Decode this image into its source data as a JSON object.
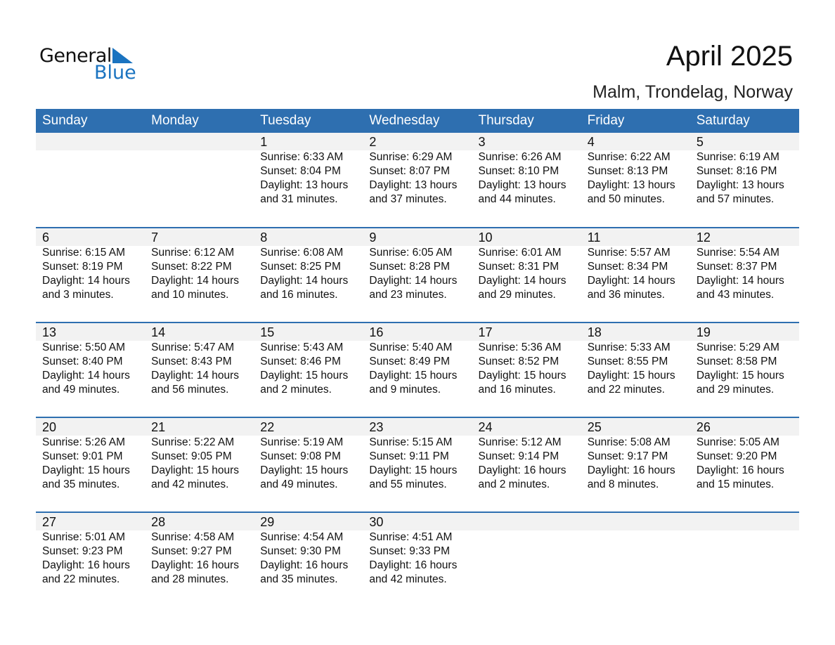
{
  "logo": {
    "text1": "General",
    "text2": "Blue"
  },
  "title": "April 2025",
  "location": "Malm, Trondelag, Norway",
  "weekdays": [
    "Sunday",
    "Monday",
    "Tuesday",
    "Wednesday",
    "Thursday",
    "Friday",
    "Saturday"
  ],
  "colors": {
    "header": "#2e6fb0",
    "band": "#f2f2f2",
    "logo_blue": "#1a73c0"
  },
  "days": [
    {
      "d": "1",
      "rise": "Sunrise: 6:33 AM",
      "set": "Sunset: 8:04 PM",
      "dl1": "Daylight: 13 hours",
      "dl2": "and 31 minutes."
    },
    {
      "d": "2",
      "rise": "Sunrise: 6:29 AM",
      "set": "Sunset: 8:07 PM",
      "dl1": "Daylight: 13 hours",
      "dl2": "and 37 minutes."
    },
    {
      "d": "3",
      "rise": "Sunrise: 6:26 AM",
      "set": "Sunset: 8:10 PM",
      "dl1": "Daylight: 13 hours",
      "dl2": "and 44 minutes."
    },
    {
      "d": "4",
      "rise": "Sunrise: 6:22 AM",
      "set": "Sunset: 8:13 PM",
      "dl1": "Daylight: 13 hours",
      "dl2": "and 50 minutes."
    },
    {
      "d": "5",
      "rise": "Sunrise: 6:19 AM",
      "set": "Sunset: 8:16 PM",
      "dl1": "Daylight: 13 hours",
      "dl2": "and 57 minutes."
    },
    {
      "d": "6",
      "rise": "Sunrise: 6:15 AM",
      "set": "Sunset: 8:19 PM",
      "dl1": "Daylight: 14 hours",
      "dl2": "and 3 minutes."
    },
    {
      "d": "7",
      "rise": "Sunrise: 6:12 AM",
      "set": "Sunset: 8:22 PM",
      "dl1": "Daylight: 14 hours",
      "dl2": "and 10 minutes."
    },
    {
      "d": "8",
      "rise": "Sunrise: 6:08 AM",
      "set": "Sunset: 8:25 PM",
      "dl1": "Daylight: 14 hours",
      "dl2": "and 16 minutes."
    },
    {
      "d": "9",
      "rise": "Sunrise: 6:05 AM",
      "set": "Sunset: 8:28 PM",
      "dl1": "Daylight: 14 hours",
      "dl2": "and 23 minutes."
    },
    {
      "d": "10",
      "rise": "Sunrise: 6:01 AM",
      "set": "Sunset: 8:31 PM",
      "dl1": "Daylight: 14 hours",
      "dl2": "and 29 minutes."
    },
    {
      "d": "11",
      "rise": "Sunrise: 5:57 AM",
      "set": "Sunset: 8:34 PM",
      "dl1": "Daylight: 14 hours",
      "dl2": "and 36 minutes."
    },
    {
      "d": "12",
      "rise": "Sunrise: 5:54 AM",
      "set": "Sunset: 8:37 PM",
      "dl1": "Daylight: 14 hours",
      "dl2": "and 43 minutes."
    },
    {
      "d": "13",
      "rise": "Sunrise: 5:50 AM",
      "set": "Sunset: 8:40 PM",
      "dl1": "Daylight: 14 hours",
      "dl2": "and 49 minutes."
    },
    {
      "d": "14",
      "rise": "Sunrise: 5:47 AM",
      "set": "Sunset: 8:43 PM",
      "dl1": "Daylight: 14 hours",
      "dl2": "and 56 minutes."
    },
    {
      "d": "15",
      "rise": "Sunrise: 5:43 AM",
      "set": "Sunset: 8:46 PM",
      "dl1": "Daylight: 15 hours",
      "dl2": "and 2 minutes."
    },
    {
      "d": "16",
      "rise": "Sunrise: 5:40 AM",
      "set": "Sunset: 8:49 PM",
      "dl1": "Daylight: 15 hours",
      "dl2": "and 9 minutes."
    },
    {
      "d": "17",
      "rise": "Sunrise: 5:36 AM",
      "set": "Sunset: 8:52 PM",
      "dl1": "Daylight: 15 hours",
      "dl2": "and 16 minutes."
    },
    {
      "d": "18",
      "rise": "Sunrise: 5:33 AM",
      "set": "Sunset: 8:55 PM",
      "dl1": "Daylight: 15 hours",
      "dl2": "and 22 minutes."
    },
    {
      "d": "19",
      "rise": "Sunrise: 5:29 AM",
      "set": "Sunset: 8:58 PM",
      "dl1": "Daylight: 15 hours",
      "dl2": "and 29 minutes."
    },
    {
      "d": "20",
      "rise": "Sunrise: 5:26 AM",
      "set": "Sunset: 9:01 PM",
      "dl1": "Daylight: 15 hours",
      "dl2": "and 35 minutes."
    },
    {
      "d": "21",
      "rise": "Sunrise: 5:22 AM",
      "set": "Sunset: 9:05 PM",
      "dl1": "Daylight: 15 hours",
      "dl2": "and 42 minutes."
    },
    {
      "d": "22",
      "rise": "Sunrise: 5:19 AM",
      "set": "Sunset: 9:08 PM",
      "dl1": "Daylight: 15 hours",
      "dl2": "and 49 minutes."
    },
    {
      "d": "23",
      "rise": "Sunrise: 5:15 AM",
      "set": "Sunset: 9:11 PM",
      "dl1": "Daylight: 15 hours",
      "dl2": "and 55 minutes."
    },
    {
      "d": "24",
      "rise": "Sunrise: 5:12 AM",
      "set": "Sunset: 9:14 PM",
      "dl1": "Daylight: 16 hours",
      "dl2": "and 2 minutes."
    },
    {
      "d": "25",
      "rise": "Sunrise: 5:08 AM",
      "set": "Sunset: 9:17 PM",
      "dl1": "Daylight: 16 hours",
      "dl2": "and 8 minutes."
    },
    {
      "d": "26",
      "rise": "Sunrise: 5:05 AM",
      "set": "Sunset: 9:20 PM",
      "dl1": "Daylight: 16 hours",
      "dl2": "and 15 minutes."
    },
    {
      "d": "27",
      "rise": "Sunrise: 5:01 AM",
      "set": "Sunset: 9:23 PM",
      "dl1": "Daylight: 16 hours",
      "dl2": "and 22 minutes."
    },
    {
      "d": "28",
      "rise": "Sunrise: 4:58 AM",
      "set": "Sunset: 9:27 PM",
      "dl1": "Daylight: 16 hours",
      "dl2": "and 28 minutes."
    },
    {
      "d": "29",
      "rise": "Sunrise: 4:54 AM",
      "set": "Sunset: 9:30 PM",
      "dl1": "Daylight: 16 hours",
      "dl2": "and 35 minutes."
    },
    {
      "d": "30",
      "rise": "Sunrise: 4:51 AM",
      "set": "Sunset: 9:33 PM",
      "dl1": "Daylight: 16 hours",
      "dl2": "and 42 minutes."
    }
  ]
}
